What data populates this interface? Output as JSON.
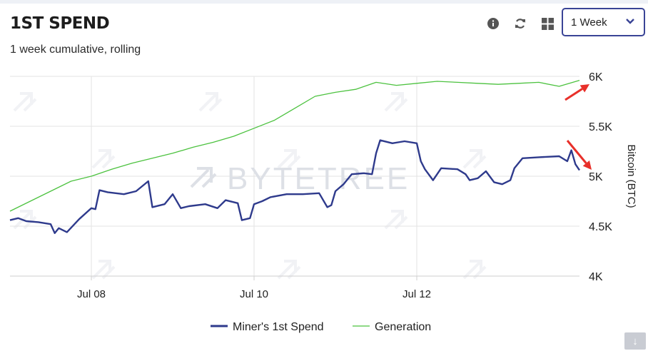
{
  "header": {
    "title": "1ST SPEND",
    "subtitle": "1 week cumulative, rolling",
    "range_selected": "1 Week"
  },
  "icons": {
    "info": "info-icon",
    "refresh": "refresh-icon",
    "grid": "grid-icon",
    "dropdown": "chevron-down-icon",
    "download": "download-icon"
  },
  "watermark": "BYTETREE",
  "colors": {
    "miners": "#2e3a8c",
    "generation": "#4cc23f",
    "annotation": "#e8302a",
    "accent": "#3a4496"
  },
  "chart_data": {
    "type": "line",
    "title": "",
    "xlabel": "",
    "ylabel": "Bitcoin (BTC)",
    "x_range": [
      0,
      7
    ],
    "x_ticks": [
      {
        "x": 1,
        "label": "Jul 08"
      },
      {
        "x": 3,
        "label": "Jul 10"
      },
      {
        "x": 5,
        "label": "Jul 12"
      }
    ],
    "ylim": [
      4000,
      6000
    ],
    "y_ticks": [
      {
        "v": 4000,
        "label": "4K"
      },
      {
        "v": 4500,
        "label": "4.5K"
      },
      {
        "v": 5000,
        "label": "5K"
      },
      {
        "v": 5500,
        "label": "5.5K"
      },
      {
        "v": 6000,
        "label": "6K"
      }
    ],
    "grid": true,
    "legend_position": "bottom-center",
    "series": [
      {
        "name": "Miner's 1st Spend",
        "points": [
          [
            0,
            4560
          ],
          [
            0.1,
            4580
          ],
          [
            0.2,
            4550
          ],
          [
            0.35,
            4540
          ],
          [
            0.5,
            4520
          ],
          [
            0.55,
            4430
          ],
          [
            0.6,
            4480
          ],
          [
            0.7,
            4440
          ],
          [
            0.85,
            4570
          ],
          [
            1.0,
            4680
          ],
          [
            1.05,
            4670
          ],
          [
            1.1,
            4860
          ],
          [
            1.2,
            4840
          ],
          [
            1.4,
            4820
          ],
          [
            1.55,
            4850
          ],
          [
            1.7,
            4950
          ],
          [
            1.75,
            4690
          ],
          [
            1.9,
            4720
          ],
          [
            2.0,
            4820
          ],
          [
            2.1,
            4680
          ],
          [
            2.2,
            4700
          ],
          [
            2.4,
            4720
          ],
          [
            2.55,
            4680
          ],
          [
            2.65,
            4760
          ],
          [
            2.8,
            4730
          ],
          [
            2.85,
            4560
          ],
          [
            2.95,
            4580
          ],
          [
            3.0,
            4720
          ],
          [
            3.1,
            4750
          ],
          [
            3.2,
            4790
          ],
          [
            3.4,
            4820
          ],
          [
            3.6,
            4820
          ],
          [
            3.8,
            4830
          ],
          [
            3.9,
            4690
          ],
          [
            3.95,
            4710
          ],
          [
            4.0,
            4850
          ],
          [
            4.1,
            4920
          ],
          [
            4.2,
            5020
          ],
          [
            4.35,
            5030
          ],
          [
            4.45,
            5020
          ],
          [
            4.5,
            5230
          ],
          [
            4.55,
            5360
          ],
          [
            4.7,
            5330
          ],
          [
            4.85,
            5350
          ],
          [
            5.0,
            5330
          ],
          [
            5.05,
            5150
          ],
          [
            5.1,
            5070
          ],
          [
            5.2,
            4960
          ],
          [
            5.3,
            5080
          ],
          [
            5.5,
            5070
          ],
          [
            5.6,
            5020
          ],
          [
            5.65,
            4960
          ],
          [
            5.75,
            4980
          ],
          [
            5.85,
            5050
          ],
          [
            5.95,
            4940
          ],
          [
            6.05,
            4920
          ],
          [
            6.15,
            4960
          ],
          [
            6.2,
            5080
          ],
          [
            6.3,
            5180
          ],
          [
            6.5,
            5190
          ],
          [
            6.75,
            5200
          ],
          [
            6.85,
            5150
          ],
          [
            6.9,
            5260
          ],
          [
            6.95,
            5120
          ],
          [
            7.0,
            5060
          ]
        ]
      },
      {
        "name": "Generation",
        "points": [
          [
            0,
            4650
          ],
          [
            0.25,
            4750
          ],
          [
            0.5,
            4850
          ],
          [
            0.75,
            4950
          ],
          [
            1.0,
            5000
          ],
          [
            1.25,
            5070
          ],
          [
            1.5,
            5130
          ],
          [
            1.75,
            5180
          ],
          [
            2.0,
            5230
          ],
          [
            2.25,
            5290
          ],
          [
            2.5,
            5340
          ],
          [
            2.75,
            5400
          ],
          [
            3.0,
            5480
          ],
          [
            3.25,
            5560
          ],
          [
            3.5,
            5680
          ],
          [
            3.75,
            5800
          ],
          [
            4.0,
            5840
          ],
          [
            4.25,
            5870
          ],
          [
            4.5,
            5940
          ],
          [
            4.75,
            5910
          ],
          [
            5.0,
            5930
          ],
          [
            5.25,
            5950
          ],
          [
            5.5,
            5940
          ],
          [
            5.75,
            5930
          ],
          [
            6.0,
            5920
          ],
          [
            6.25,
            5930
          ],
          [
            6.5,
            5940
          ],
          [
            6.75,
            5900
          ],
          [
            7.0,
            5960
          ]
        ]
      }
    ]
  }
}
